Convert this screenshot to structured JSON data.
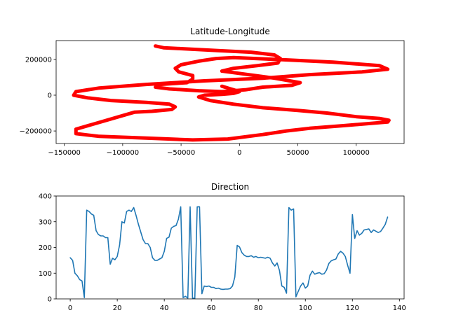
{
  "chart_data": [
    {
      "type": "line",
      "title": "Latitude-Longitude",
      "xlabel": "",
      "ylabel": "",
      "xlim": [
        -157000,
        141000
      ],
      "ylim": [
        -270000,
        305000
      ],
      "x_ticks": [
        -150000,
        -100000,
        -50000,
        0,
        50000,
        100000
      ],
      "y_ticks": [
        -200000,
        0,
        200000
      ],
      "grid": false,
      "color": "#ff0000",
      "series": [
        {
          "x": [
            -72000,
            -65000,
            -50000,
            -20000,
            10000,
            30000,
            35000,
            33000,
            15000,
            -5000,
            -15000,
            2000,
            30000,
            52000,
            45000,
            20000,
            5000,
            -15000,
            -35000,
            -60000,
            -72000,
            -68000,
            -45000,
            -40000,
            -40000,
            -52000,
            -55000,
            -50000,
            -35000,
            -20000,
            -5000,
            30000,
            80000,
            120000,
            127000,
            105000,
            60000,
            20000,
            -30000,
            -80000,
            -120000,
            -140000,
            -142000,
            -130000,
            -110000,
            -80000,
            -60000,
            -55000,
            -58000,
            -75000,
            -90000,
            -140000,
            -140000,
            -120000,
            -80000,
            -40000,
            -10000,
            20000,
            40000,
            60000,
            90000,
            127000,
            128000,
            120000,
            100000,
            75000,
            50000,
            20000,
            -5000,
            -25000,
            -35000,
            -30000,
            -15000,
            -5000,
            0,
            -5000,
            -10000,
            -15000
          ],
          "y": [
            275000,
            265000,
            260000,
            250000,
            240000,
            225000,
            205000,
            180000,
            165000,
            150000,
            135000,
            120000,
            95000,
            70000,
            55000,
            45000,
            30000,
            20000,
            25000,
            35000,
            45000,
            60000,
            70000,
            90000,
            110000,
            130000,
            150000,
            170000,
            190000,
            205000,
            210000,
            200000,
            185000,
            165000,
            145000,
            130000,
            115000,
            95000,
            80000,
            60000,
            40000,
            20000,
            0,
            -15000,
            -30000,
            -40000,
            -50000,
            -65000,
            -80000,
            -90000,
            -95000,
            -190000,
            -215000,
            -230000,
            -240000,
            -250000,
            -245000,
            -220000,
            -200000,
            -185000,
            -170000,
            -150000,
            -140000,
            -130000,
            -120000,
            -100000,
            -85000,
            -70000,
            -50000,
            -30000,
            -10000,
            0,
            5000,
            10000,
            20000,
            30000,
            40000,
            50000
          ]
        }
      ]
    },
    {
      "type": "line",
      "title": "Direction",
      "xlabel": "",
      "ylabel": "",
      "xlim": [
        -6,
        142
      ],
      "ylim": [
        0,
        400
      ],
      "x_ticks": [
        0,
        20,
        40,
        60,
        80,
        100,
        120,
        140
      ],
      "y_ticks": [
        0,
        100,
        200,
        300,
        400
      ],
      "grid": false,
      "color": "#1f77b4",
      "series": [
        {
          "x": [
            0,
            1,
            2,
            3,
            4,
            5,
            6,
            7,
            8,
            9,
            10,
            11,
            12,
            13,
            14,
            15,
            16,
            17,
            18,
            19,
            20,
            21,
            22,
            23,
            24,
            25,
            26,
            27,
            28,
            29,
            30,
            31,
            32,
            33,
            34,
            35,
            36,
            37,
            38,
            39,
            40,
            41,
            42,
            43,
            44,
            45,
            46,
            47,
            48,
            49,
            50,
            51,
            52,
            53,
            54,
            55,
            56,
            57,
            58,
            59,
            60,
            61,
            62,
            63,
            64,
            65,
            66,
            67,
            68,
            69,
            70,
            71,
            72,
            73,
            74,
            75,
            76,
            77,
            78,
            79,
            80,
            81,
            82,
            83,
            84,
            85,
            86,
            87,
            88,
            89,
            90,
            91,
            92,
            93,
            94,
            95,
            96,
            97,
            98,
            99,
            100,
            101,
            102,
            103,
            104,
            105,
            106,
            107,
            108,
            109,
            110,
            111,
            112,
            113,
            114,
            115,
            116,
            117,
            118,
            119,
            120,
            121,
            122,
            123,
            124,
            125,
            126,
            127,
            128,
            129,
            130,
            131,
            132,
            133,
            134,
            135
          ],
          "y": [
            160,
            150,
            100,
            90,
            75,
            70,
            5,
            345,
            340,
            330,
            325,
            265,
            250,
            245,
            245,
            238,
            238,
            135,
            158,
            152,
            165,
            210,
            300,
            295,
            340,
            345,
            340,
            355,
            325,
            290,
            260,
            230,
            215,
            215,
            200,
            160,
            150,
            150,
            155,
            160,
            185,
            235,
            240,
            275,
            282,
            285,
            310,
            358,
            5,
            10,
            3,
            358,
            3,
            2,
            358,
            358,
            20,
            50,
            48,
            50,
            45,
            45,
            40,
            42,
            38,
            37,
            38,
            38,
            40,
            50,
            85,
            208,
            202,
            180,
            170,
            165,
            165,
            168,
            162,
            165,
            160,
            162,
            160,
            158,
            162,
            158,
            140,
            128,
            140,
            110,
            50,
            45,
            22,
            355,
            345,
            350,
            8,
            30,
            50,
            62,
            42,
            50,
            92,
            108,
            96,
            100,
            102,
            96,
            98,
            112,
            138,
            148,
            152,
            155,
            175,
            185,
            178,
            165,
            130,
            100,
            328,
            235,
            265,
            248,
            255,
            268,
            270,
            272,
            258,
            268,
            263,
            258,
            262,
            275,
            290,
            318
          ]
        }
      ]
    }
  ]
}
